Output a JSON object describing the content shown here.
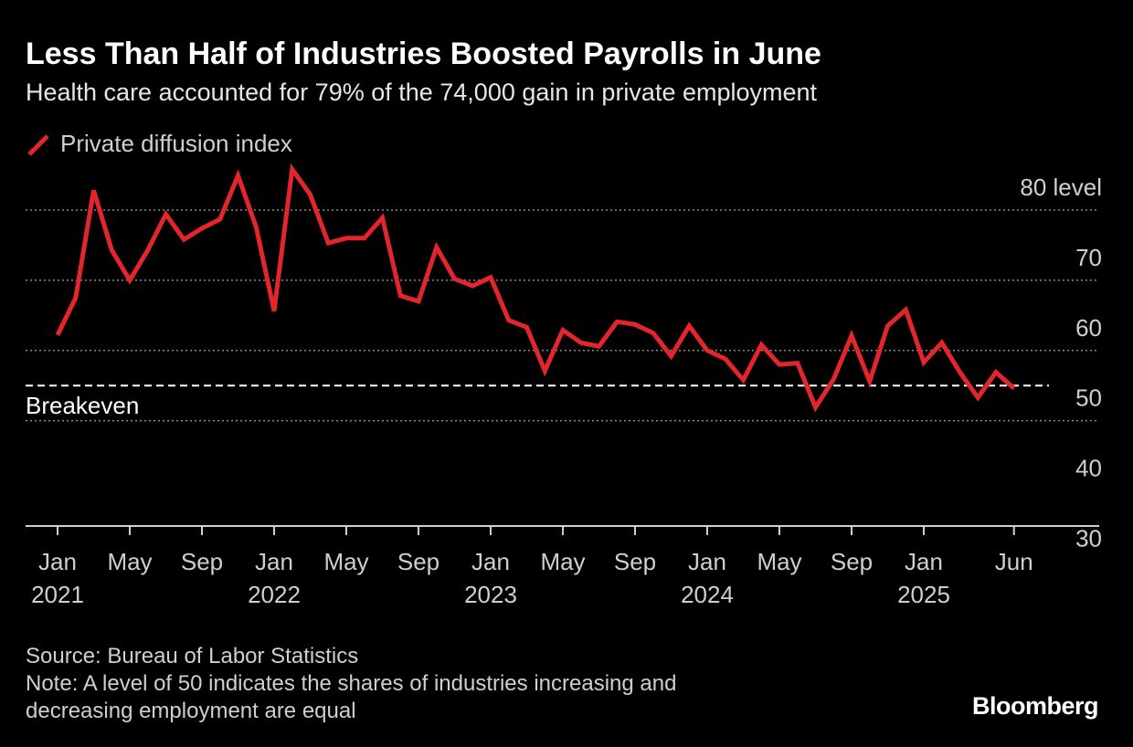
{
  "header": {
    "title": "Less Than Half of Industries Boosted Payrolls in June",
    "subtitle": "Health care accounted for 79% of the 74,000 gain in private employment"
  },
  "colors": {
    "background": "#000000",
    "series": "#e3262b",
    "grid": "#8a8a8a",
    "text": "#cfcfcf"
  },
  "chart_data": {
    "type": "line",
    "ylim": [
      30,
      80
    ],
    "y_unit_label": "level",
    "yticks": [
      30,
      40,
      50,
      60,
      70,
      80
    ],
    "grid": true,
    "legend_position": "top-left",
    "x_tick_labels": [
      {
        "month": "Jan",
        "year": "2021",
        "index": 0
      },
      {
        "month": "May",
        "year": "",
        "index": 4
      },
      {
        "month": "Sep",
        "year": "",
        "index": 8
      },
      {
        "month": "Jan",
        "year": "2022",
        "index": 12
      },
      {
        "month": "May",
        "year": "",
        "index": 16
      },
      {
        "month": "Sep",
        "year": "",
        "index": 20
      },
      {
        "month": "Jan",
        "year": "2023",
        "index": 24
      },
      {
        "month": "May",
        "year": "",
        "index": 28
      },
      {
        "month": "Sep",
        "year": "",
        "index": 32
      },
      {
        "month": "Jan",
        "year": "2024",
        "index": 36
      },
      {
        "month": "May",
        "year": "",
        "index": 40
      },
      {
        "month": "Sep",
        "year": "",
        "index": 44
      },
      {
        "month": "Jan",
        "year": "2025",
        "index": 48
      },
      {
        "month": "Jun",
        "year": "",
        "index": 53
      }
    ],
    "series": [
      {
        "name": "Private diffusion index",
        "values": [
          57.2,
          62.5,
          77.8,
          69.3,
          65.0,
          69.3,
          74.4,
          70.8,
          72.4,
          73.7,
          79.9,
          72.6,
          60.6,
          80.8,
          77.2,
          70.3,
          71.0,
          71.0,
          73.9,
          62.8,
          62.0,
          69.7,
          65.2,
          64.2,
          65.4,
          59.3,
          58.3,
          52.1,
          57.9,
          56.1,
          55.6,
          59.1,
          58.7,
          57.5,
          54.2,
          58.5,
          55.0,
          53.8,
          50.8,
          55.8,
          53.0,
          53.2,
          46.9,
          50.9,
          57.1,
          50.6,
          58.5,
          60.8,
          53.3,
          56.1,
          51.9,
          48.3,
          51.9,
          49.6
        ]
      }
    ],
    "reference_line": {
      "value": 50,
      "label": "Breakeven"
    }
  },
  "footer": {
    "source": "Source: Bureau of Labor Statistics",
    "note_line1": "Note: A level of 50 indicates the shares of industries increasing and",
    "note_line2": "decreasing employment are equal"
  },
  "brand": "Bloomberg"
}
